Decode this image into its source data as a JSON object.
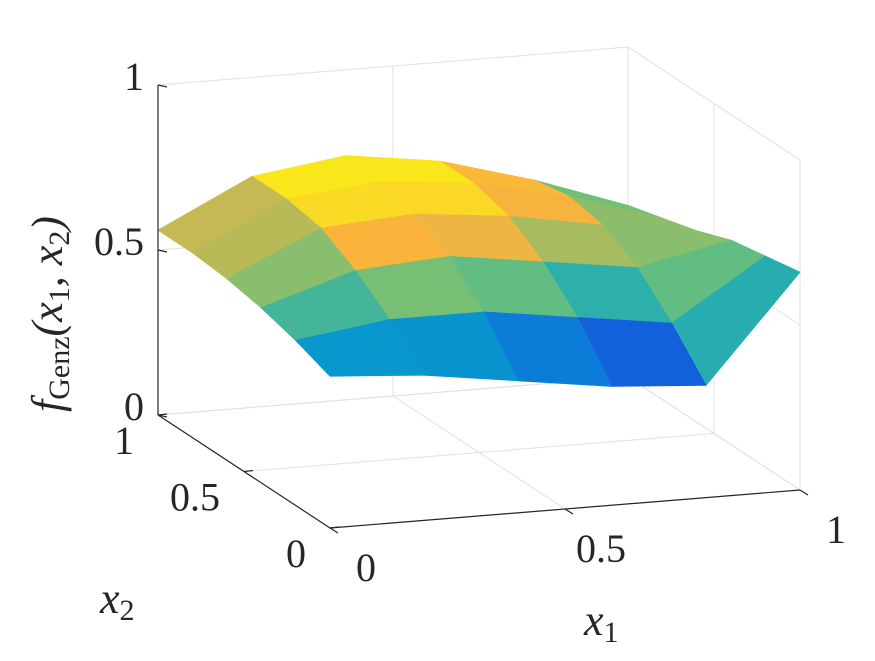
{
  "chart_data": {
    "type": "surface",
    "colormap": "parula",
    "grid": true,
    "x": [
      0,
      0.2,
      0.4,
      0.6,
      0.8,
      1
    ],
    "y": [
      0,
      0.2,
      0.4,
      0.6,
      0.8,
      1
    ],
    "z": [
      [
        0.46,
        0.44,
        0.4,
        0.36,
        0.34,
        0.66
      ],
      [
        0.5,
        0.54,
        0.54,
        0.5,
        0.46,
        0.64
      ],
      [
        0.53,
        0.62,
        0.64,
        0.6,
        0.56,
        0.62
      ],
      [
        0.55,
        0.68,
        0.7,
        0.67,
        0.62,
        0.58
      ],
      [
        0.56,
        0.7,
        0.73,
        0.7,
        0.64,
        0.55
      ],
      [
        0.56,
        0.7,
        0.74,
        0.7,
        0.62,
        0.52
      ]
    ],
    "xlim": [
      0,
      1
    ],
    "ylim": [
      0,
      1
    ],
    "zlim": [
      0,
      1
    ],
    "xticks": [
      0,
      0.5,
      1
    ],
    "yticks": [
      0,
      0.5,
      1
    ],
    "zticks": [
      0,
      0.5,
      1
    ],
    "xlabel": [
      "x",
      "1"
    ],
    "ylabel": [
      "x",
      "2"
    ],
    "zlabel": [
      "f",
      "Genz",
      "(x",
      "1",
      ", x",
      "2",
      ")"
    ]
  }
}
